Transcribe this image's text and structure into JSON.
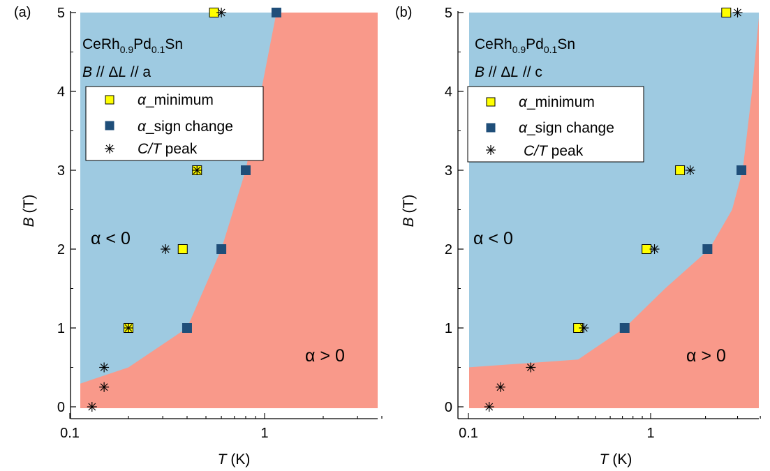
{
  "figure": {
    "colors": {
      "negative_region": "#9ecae1",
      "positive_region": "#f9998a",
      "minimum_marker": "#ffff00",
      "sign_change_marker": "#1f4e79",
      "axis": "#000000"
    }
  },
  "chart_data": [
    {
      "panel": "a",
      "panel_label": "(a)",
      "type": "scatter",
      "xscale": "log",
      "xlim": [
        0.1,
        4
      ],
      "ylim": [
        0,
        5
      ],
      "xticks": [
        0.1,
        1
      ],
      "xtick_labels": [
        "0.1",
        "1"
      ],
      "yticks": [
        0,
        1,
        2,
        3,
        4,
        5
      ],
      "ytick_labels": [
        "0",
        "1",
        "2",
        "3",
        "4",
        "5"
      ],
      "xlabel_var": "T",
      "xlabel_unit": " (K)",
      "ylabel_var": "B",
      "ylabel_unit": " (T)",
      "compound": {
        "base": "CeRh",
        "sub1": "0.9",
        "mid": "Pd",
        "sub2": "0.1",
        "end": "Sn"
      },
      "orientation": {
        "b": "B",
        "sep1": " // Δ",
        "l": "L",
        "sep2": " // a"
      },
      "legend": [
        {
          "symbol": "α",
          "text": "_minimum",
          "marker": "yellow-square"
        },
        {
          "symbol": "α",
          "text": "_sign change",
          "marker": "blue-square"
        },
        {
          "symbol": "C/T",
          "text": " peak",
          "marker": "asterisk"
        }
      ],
      "region_labels": {
        "negative": "α < 0",
        "positive": "α > 0"
      },
      "boundary": [
        [
          0.1,
          0.25
        ],
        [
          0.2,
          0.5
        ],
        [
          0.4,
          1.0
        ],
        [
          0.6,
          2.0
        ],
        [
          0.8,
          3.0
        ],
        [
          1.15,
          5.0
        ]
      ],
      "series": [
        {
          "name": "α_minimum",
          "marker": "yellow-square",
          "points": [
            [
              0.2,
              1.0
            ],
            [
              0.38,
              2.0
            ],
            [
              0.45,
              3.0
            ],
            [
              0.55,
              5.0
            ]
          ]
        },
        {
          "name": "α_sign change",
          "marker": "blue-square",
          "points": [
            [
              0.4,
              1.0
            ],
            [
              0.6,
              2.0
            ],
            [
              0.8,
              3.0
            ],
            [
              1.15,
              5.0
            ]
          ]
        },
        {
          "name": "C/T peak",
          "marker": "asterisk",
          "points": [
            [
              0.13,
              0.0
            ],
            [
              0.15,
              0.25
            ],
            [
              0.15,
              0.5
            ],
            [
              0.2,
              1.0
            ],
            [
              0.31,
              2.0
            ],
            [
              0.45,
              3.0
            ],
            [
              0.6,
              5.0
            ]
          ]
        }
      ]
    },
    {
      "panel": "b",
      "panel_label": "(b)",
      "type": "scatter",
      "xscale": "log",
      "xlim": [
        0.1,
        4
      ],
      "ylim": [
        0,
        5
      ],
      "xticks": [
        0.1,
        1
      ],
      "xtick_labels": [
        "0.1",
        "1"
      ],
      "yticks": [
        0,
        1,
        2,
        3,
        4,
        5
      ],
      "ytick_labels": [
        "0",
        "1",
        "2",
        "3",
        "4",
        "5"
      ],
      "xlabel_var": "T",
      "xlabel_unit": " (K)",
      "ylabel_var": "B",
      "ylabel_unit": " (T)",
      "compound": {
        "base": "CeRh",
        "sub1": "0.9",
        "mid": "Pd",
        "sub2": "0.1",
        "end": "Sn"
      },
      "orientation": {
        "b": "B",
        "sep1": " // Δ",
        "l": "L",
        "sep2": " // c"
      },
      "legend": [
        {
          "symbol": "α",
          "text": "_minimum",
          "marker": "yellow-square"
        },
        {
          "symbol": "α",
          "text": "_sign change",
          "marker": "blue-square"
        },
        {
          "symbol": "C/T",
          "text": " peak",
          "marker": "asterisk"
        }
      ],
      "region_labels": {
        "negative": "α < 0",
        "positive": "α > 0"
      },
      "boundary": [
        [
          0.1,
          0.5
        ],
        [
          0.4,
          0.6
        ],
        [
          0.72,
          1.0
        ],
        [
          1.2,
          1.5
        ],
        [
          2.1,
          2.0
        ],
        [
          2.8,
          2.5
        ],
        [
          3.2,
          3.0
        ],
        [
          3.6,
          4.0
        ],
        [
          3.95,
          5.0
        ]
      ],
      "series": [
        {
          "name": "α_minimum",
          "marker": "yellow-square",
          "points": [
            [
              0.4,
              1.0
            ],
            [
              0.95,
              2.0
            ],
            [
              1.45,
              3.0
            ],
            [
              2.6,
              5.0
            ]
          ]
        },
        {
          "name": "α_sign change",
          "marker": "blue-square",
          "points": [
            [
              0.72,
              1.0
            ],
            [
              2.05,
              2.0
            ],
            [
              3.15,
              3.0
            ]
          ]
        },
        {
          "name": "C/T peak",
          "marker": "asterisk",
          "points": [
            [
              0.13,
              0.0
            ],
            [
              0.15,
              0.25
            ],
            [
              0.22,
              0.5
            ],
            [
              0.43,
              1.0
            ],
            [
              1.05,
              2.0
            ],
            [
              1.65,
              3.0
            ],
            [
              3.0,
              5.0
            ]
          ]
        }
      ]
    }
  ]
}
